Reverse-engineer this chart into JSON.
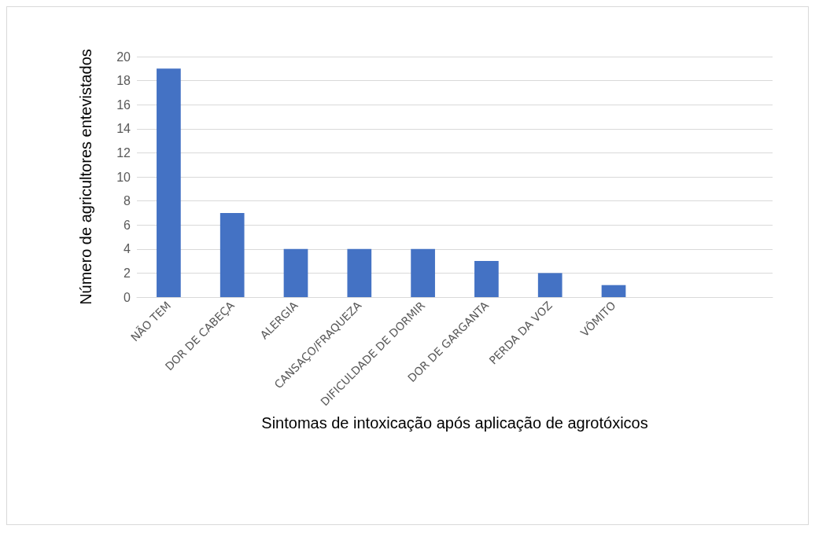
{
  "chart_data": {
    "type": "bar",
    "xlabel": "Sintomas de intoxicação após aplicação de agrotóxicos",
    "ylabel": "Número de agricultores entevistados",
    "categories": [
      "NÃO TEM",
      "DOR DE CABEÇA",
      "ALERGIA",
      "CANSAÇO/FRAQUEZA",
      "DIFICULDADE DE DORMIR",
      "DOR DE GARGANTA",
      "PERDA DA VOZ",
      "VÔMITO",
      null,
      null
    ],
    "values": [
      19,
      7,
      4,
      4,
      4,
      3,
      2,
      1,
      null,
      null
    ],
    "color": "#4472c4",
    "ylim": [
      0,
      20
    ],
    "yticks": [
      0,
      2,
      4,
      6,
      8,
      10,
      12,
      14,
      16,
      18,
      20
    ],
    "grid": "y"
  }
}
